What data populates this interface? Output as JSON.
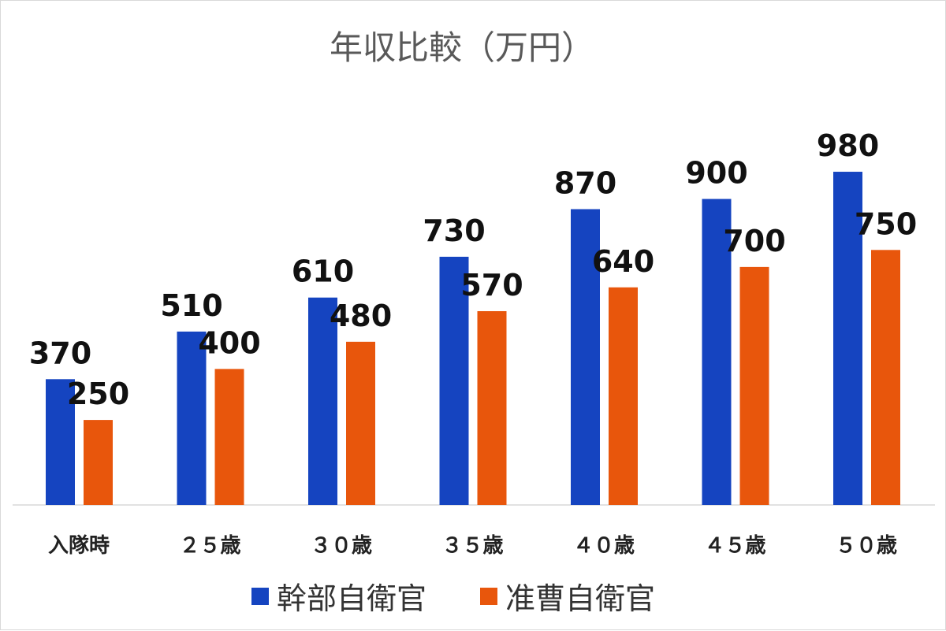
{
  "chart_data": {
    "type": "bar",
    "title": "年収比較（万円）",
    "categories": [
      "入隊時",
      "２５歳",
      "３０歳",
      "３５歳",
      "４０歳",
      "４５歳",
      "５０歳"
    ],
    "series": [
      {
        "name": "幹部自衛官",
        "values": [
          370,
          510,
          610,
          730,
          870,
          900,
          980
        ],
        "color": "#1544c0"
      },
      {
        "name": "准曹自衛官",
        "values": [
          250,
          400,
          480,
          570,
          640,
          700,
          750
        ],
        "color": "#e8560c"
      }
    ],
    "xlabel": "",
    "ylabel": "",
    "ylim": [
      0,
      1000
    ],
    "grid": false,
    "legend": "bottom",
    "data_labels": true
  }
}
